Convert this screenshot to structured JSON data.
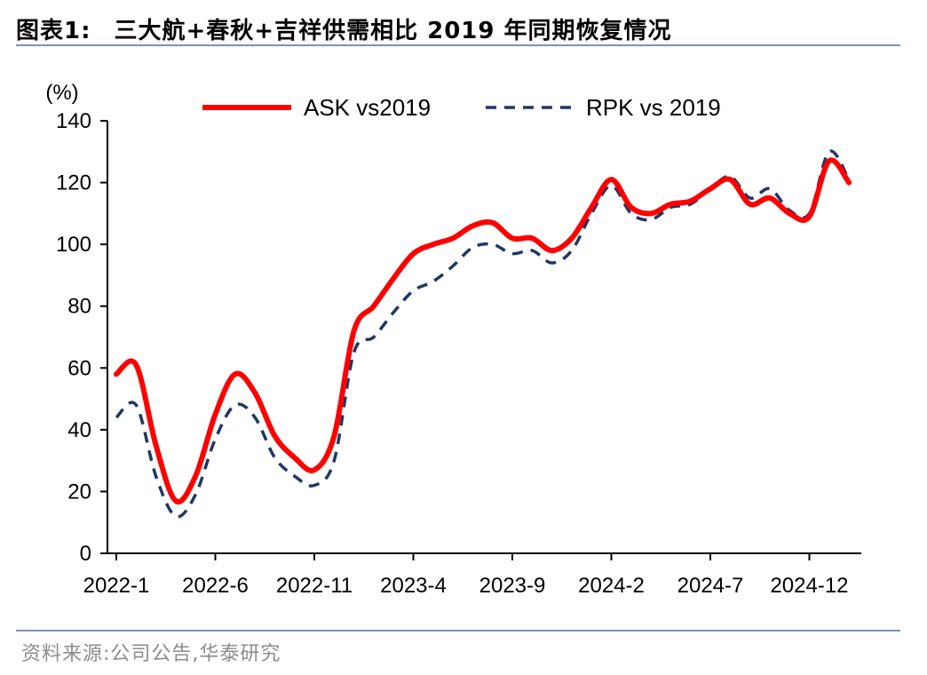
{
  "header": {
    "prefix": "图表1:",
    "title": "三大航+春秋+吉祥供需相比 2019 年同期恢复情况"
  },
  "footer": {
    "source": "资料来源:公司公告,华泰研究"
  },
  "chart_data": {
    "type": "line",
    "ylabel": "(%)",
    "ylim": [
      0,
      140
    ],
    "yticks": [
      0,
      20,
      40,
      60,
      80,
      100,
      120,
      140
    ],
    "x": [
      "2022-1",
      "2022-2",
      "2022-3",
      "2022-4",
      "2022-5",
      "2022-6",
      "2022-7",
      "2022-8",
      "2022-9",
      "2022-10",
      "2022-11",
      "2022-12",
      "2023-1",
      "2023-2",
      "2023-3",
      "2023-4",
      "2023-5",
      "2023-6",
      "2023-7",
      "2023-8",
      "2023-9",
      "2023-10",
      "2023-11",
      "2023-12",
      "2024-1",
      "2024-2",
      "2024-3",
      "2024-4",
      "2024-5",
      "2024-6",
      "2024-7",
      "2024-8",
      "2024-9",
      "2024-10",
      "2024-11",
      "2024-12",
      "2025-1",
      "2025-2"
    ],
    "xtick_labels": [
      "2022-1",
      "2022-6",
      "2022-11",
      "2023-4",
      "2023-9",
      "2024-2",
      "2024-7",
      "2024-12"
    ],
    "legend_position": "top",
    "grid": false,
    "series": [
      {
        "name": "ASK vs2019",
        "color": "#ff0000",
        "style": "solid",
        "values": [
          58,
          61,
          35,
          17,
          25,
          45,
          58,
          52,
          38,
          31,
          27,
          38,
          72,
          80,
          89,
          97,
          100,
          102,
          106,
          107,
          102,
          102,
          98,
          102,
          112,
          121,
          112,
          110,
          113,
          114,
          118,
          121,
          113,
          115,
          110,
          109,
          127,
          120
        ]
      },
      {
        "name": "RPK vs 2019",
        "color": "#1f3864",
        "style": "dashed",
        "values": [
          44,
          48,
          25,
          12,
          19,
          37,
          48,
          44,
          31,
          25,
          22,
          30,
          65,
          70,
          78,
          85,
          88,
          93,
          99,
          100,
          97,
          98,
          94,
          98,
          110,
          119,
          110,
          108,
          112,
          113,
          118,
          122,
          115,
          118,
          111,
          110,
          130,
          121
        ]
      }
    ]
  }
}
